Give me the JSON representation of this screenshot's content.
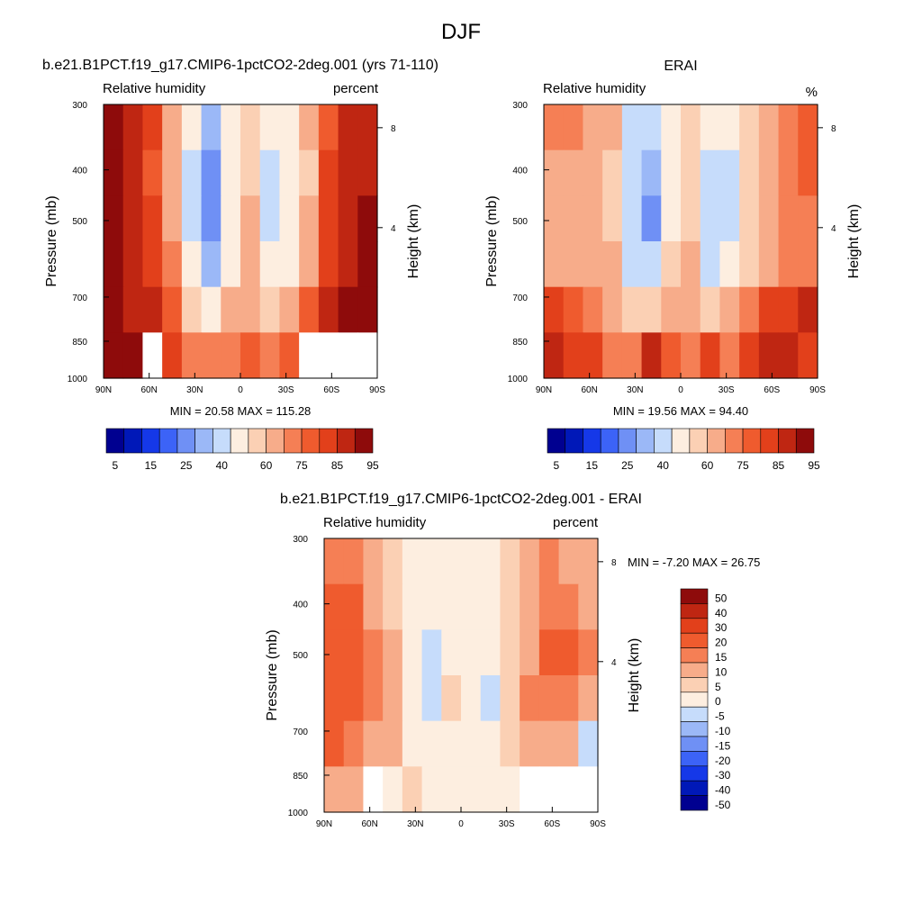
{
  "figure": {
    "title": "DJF"
  },
  "chart_data": [
    {
      "type": "heatmap",
      "title": "b.e21.B1PCT.f19_g17.CMIP6-1pctCO2-2deg.001 (yrs 71-110)",
      "left_label": "Relative humidity",
      "right_label": "percent",
      "xlabel": "",
      "ylabel": "Pressure (mb)",
      "y2label": "Height (km)",
      "x_ticks": [
        "90N",
        "60N",
        "30N",
        "0",
        "30S",
        "60S",
        "90S"
      ],
      "y_ticks": [
        "300",
        "400",
        "500",
        "700",
        "850",
        "1000"
      ],
      "y2_ticks": [
        "8",
        "4"
      ],
      "ylim": [
        1000,
        300
      ],
      "xlim": [
        90,
        -90
      ],
      "stats": "MIN =  20.58  MAX = 115.28",
      "colorbar_labels": [
        "5",
        "15",
        "25",
        "40",
        "60",
        "75",
        "85",
        "95"
      ],
      "colorbar_colors": [
        "#000090",
        "#0018b8",
        "#1538e8",
        "#3c63f7",
        "#6f90f5",
        "#9bb8f7",
        "#c6dcfb",
        "#fdeee0",
        "#fbd0b4",
        "#f7ac8a",
        "#f57f55",
        "#ef5b2e",
        "#e2401b",
        "#bf2612",
        "#8e0b0b"
      ],
      "grid": [
        [
          95,
          88,
          80,
          68,
          40,
          28,
          40,
          58,
          40,
          42,
          60,
          78,
          88,
          90
        ],
        [
          96,
          88,
          79,
          66,
          38,
          24,
          40,
          58,
          38,
          40,
          58,
          80,
          90,
          94
        ],
        [
          98,
          90,
          80,
          66,
          36,
          22,
          42,
          60,
          36,
          40,
          60,
          80,
          92,
          96
        ],
        [
          100,
          92,
          82,
          70,
          40,
          28,
          48,
          62,
          40,
          44,
          66,
          84,
          94,
          98
        ],
        [
          100,
          94,
          86,
          78,
          58,
          48,
          60,
          68,
          58,
          62,
          76,
          88,
          95,
          98
        ],
        [
          105,
          96,
          88,
          82,
          72,
          70,
          74,
          78,
          74,
          76,
          84,
          90,
          94,
          96
        ]
      ],
      "masked_cells": [
        [
          5,
          2
        ],
        [
          5,
          10
        ],
        [
          5,
          11
        ],
        [
          5,
          12
        ],
        [
          5,
          13
        ]
      ],
      "panel": "top-left"
    },
    {
      "type": "heatmap",
      "title": "ERAI",
      "left_label": "Relative humidity",
      "right_label": "%",
      "xlabel": "",
      "ylabel": "Pressure (mb)",
      "y2label": "Height (km)",
      "x_ticks": [
        "90N",
        "60N",
        "30N",
        "0",
        "30S",
        "60S",
        "90S"
      ],
      "y_ticks": [
        "300",
        "400",
        "500",
        "700",
        "850",
        "1000"
      ],
      "y2_ticks": [
        "8",
        "4"
      ],
      "ylim": [
        1000,
        300
      ],
      "xlim": [
        90,
        -90
      ],
      "stats": "MIN =  19.56  MAX =  94.40",
      "colorbar_labels": [
        "5",
        "15",
        "25",
        "40",
        "60",
        "75",
        "85",
        "95"
      ],
      "colorbar_colors": [
        "#000090",
        "#0018b8",
        "#1538e8",
        "#3c63f7",
        "#6f90f5",
        "#9bb8f7",
        "#c6dcfb",
        "#fdeee0",
        "#fbd0b4",
        "#f7ac8a",
        "#f57f55",
        "#ef5b2e",
        "#e2401b",
        "#bf2612",
        "#8e0b0b"
      ],
      "grid": [
        [
          74,
          70,
          66,
          62,
          38,
          30,
          46,
          56,
          40,
          40,
          54,
          68,
          74,
          78
        ],
        [
          68,
          64,
          62,
          58,
          34,
          26,
          44,
          56,
          36,
          36,
          52,
          66,
          72,
          76
        ],
        [
          64,
          62,
          60,
          56,
          30,
          22,
          44,
          58,
          32,
          34,
          52,
          66,
          70,
          74
        ],
        [
          66,
          64,
          62,
          60,
          38,
          30,
          50,
          62,
          38,
          42,
          58,
          68,
          72,
          74
        ],
        [
          80,
          78,
          72,
          68,
          58,
          52,
          60,
          66,
          56,
          60,
          72,
          80,
          84,
          86
        ],
        [
          86,
          84,
          80,
          74,
          70,
          86,
          76,
          74,
          80,
          72,
          82,
          90,
          86,
          84
        ]
      ],
      "masked_cells": [],
      "panel": "top-right"
    },
    {
      "type": "heatmap",
      "title": "b.e21.B1PCT.f19_g17.CMIP6-1pctCO2-2deg.001 - ERAI",
      "left_label": "Relative humidity",
      "right_label": "percent",
      "xlabel": "",
      "ylabel": "Pressure (mb)",
      "y2label": "Height (km)",
      "x_ticks": [
        "90N",
        "60N",
        "30N",
        "0",
        "30S",
        "60S",
        "90S"
      ],
      "y_ticks": [
        "300",
        "400",
        "500",
        "700",
        "850",
        "1000"
      ],
      "y2_ticks": [
        "8",
        "4"
      ],
      "ylim": [
        1000,
        300
      ],
      "xlim": [
        90,
        -90
      ],
      "stats": "MIN =  -7.20  MAX =  26.75",
      "colorbar_labels": [
        "50",
        "40",
        "30",
        "20",
        "15",
        "10",
        "5",
        "0",
        "-5",
        "-10",
        "-15",
        "-20",
        "-30",
        "-40",
        "-50"
      ],
      "colorbar_colors": [
        "#8e0b0b",
        "#bf2612",
        "#e2401b",
        "#ef5b2e",
        "#f57f55",
        "#f7ac8a",
        "#fbd0b4",
        "#fdeee0",
        "#c6dcfb",
        "#9bb8f7",
        "#6f90f5",
        "#3c63f7",
        "#1538e8",
        "#0018b8",
        "#000090"
      ],
      "grid": [
        [
          18,
          16,
          12,
          6,
          2,
          4,
          4,
          2,
          4,
          8,
          10,
          16,
          12,
          10
        ],
        [
          24,
          20,
          14,
          8,
          2,
          2,
          2,
          1,
          4,
          6,
          12,
          18,
          16,
          14
        ],
        [
          28,
          22,
          16,
          10,
          2,
          -2,
          2,
          4,
          2,
          6,
          14,
          22,
          20,
          18
        ],
        [
          26,
          22,
          16,
          10,
          4,
          -2,
          6,
          2,
          -2,
          8,
          16,
          18,
          16,
          14
        ],
        [
          20,
          16,
          14,
          10,
          4,
          2,
          4,
          2,
          0,
          6,
          14,
          12,
          10,
          -4
        ],
        [
          14,
          10,
          8,
          4,
          6,
          2,
          2,
          2,
          2,
          4,
          6,
          8,
          6,
          4
        ]
      ],
      "masked_cells": [
        [
          5,
          2
        ],
        [
          5,
          10
        ],
        [
          5,
          11
        ],
        [
          5,
          12
        ],
        [
          5,
          13
        ]
      ],
      "panel": "bottom"
    }
  ]
}
